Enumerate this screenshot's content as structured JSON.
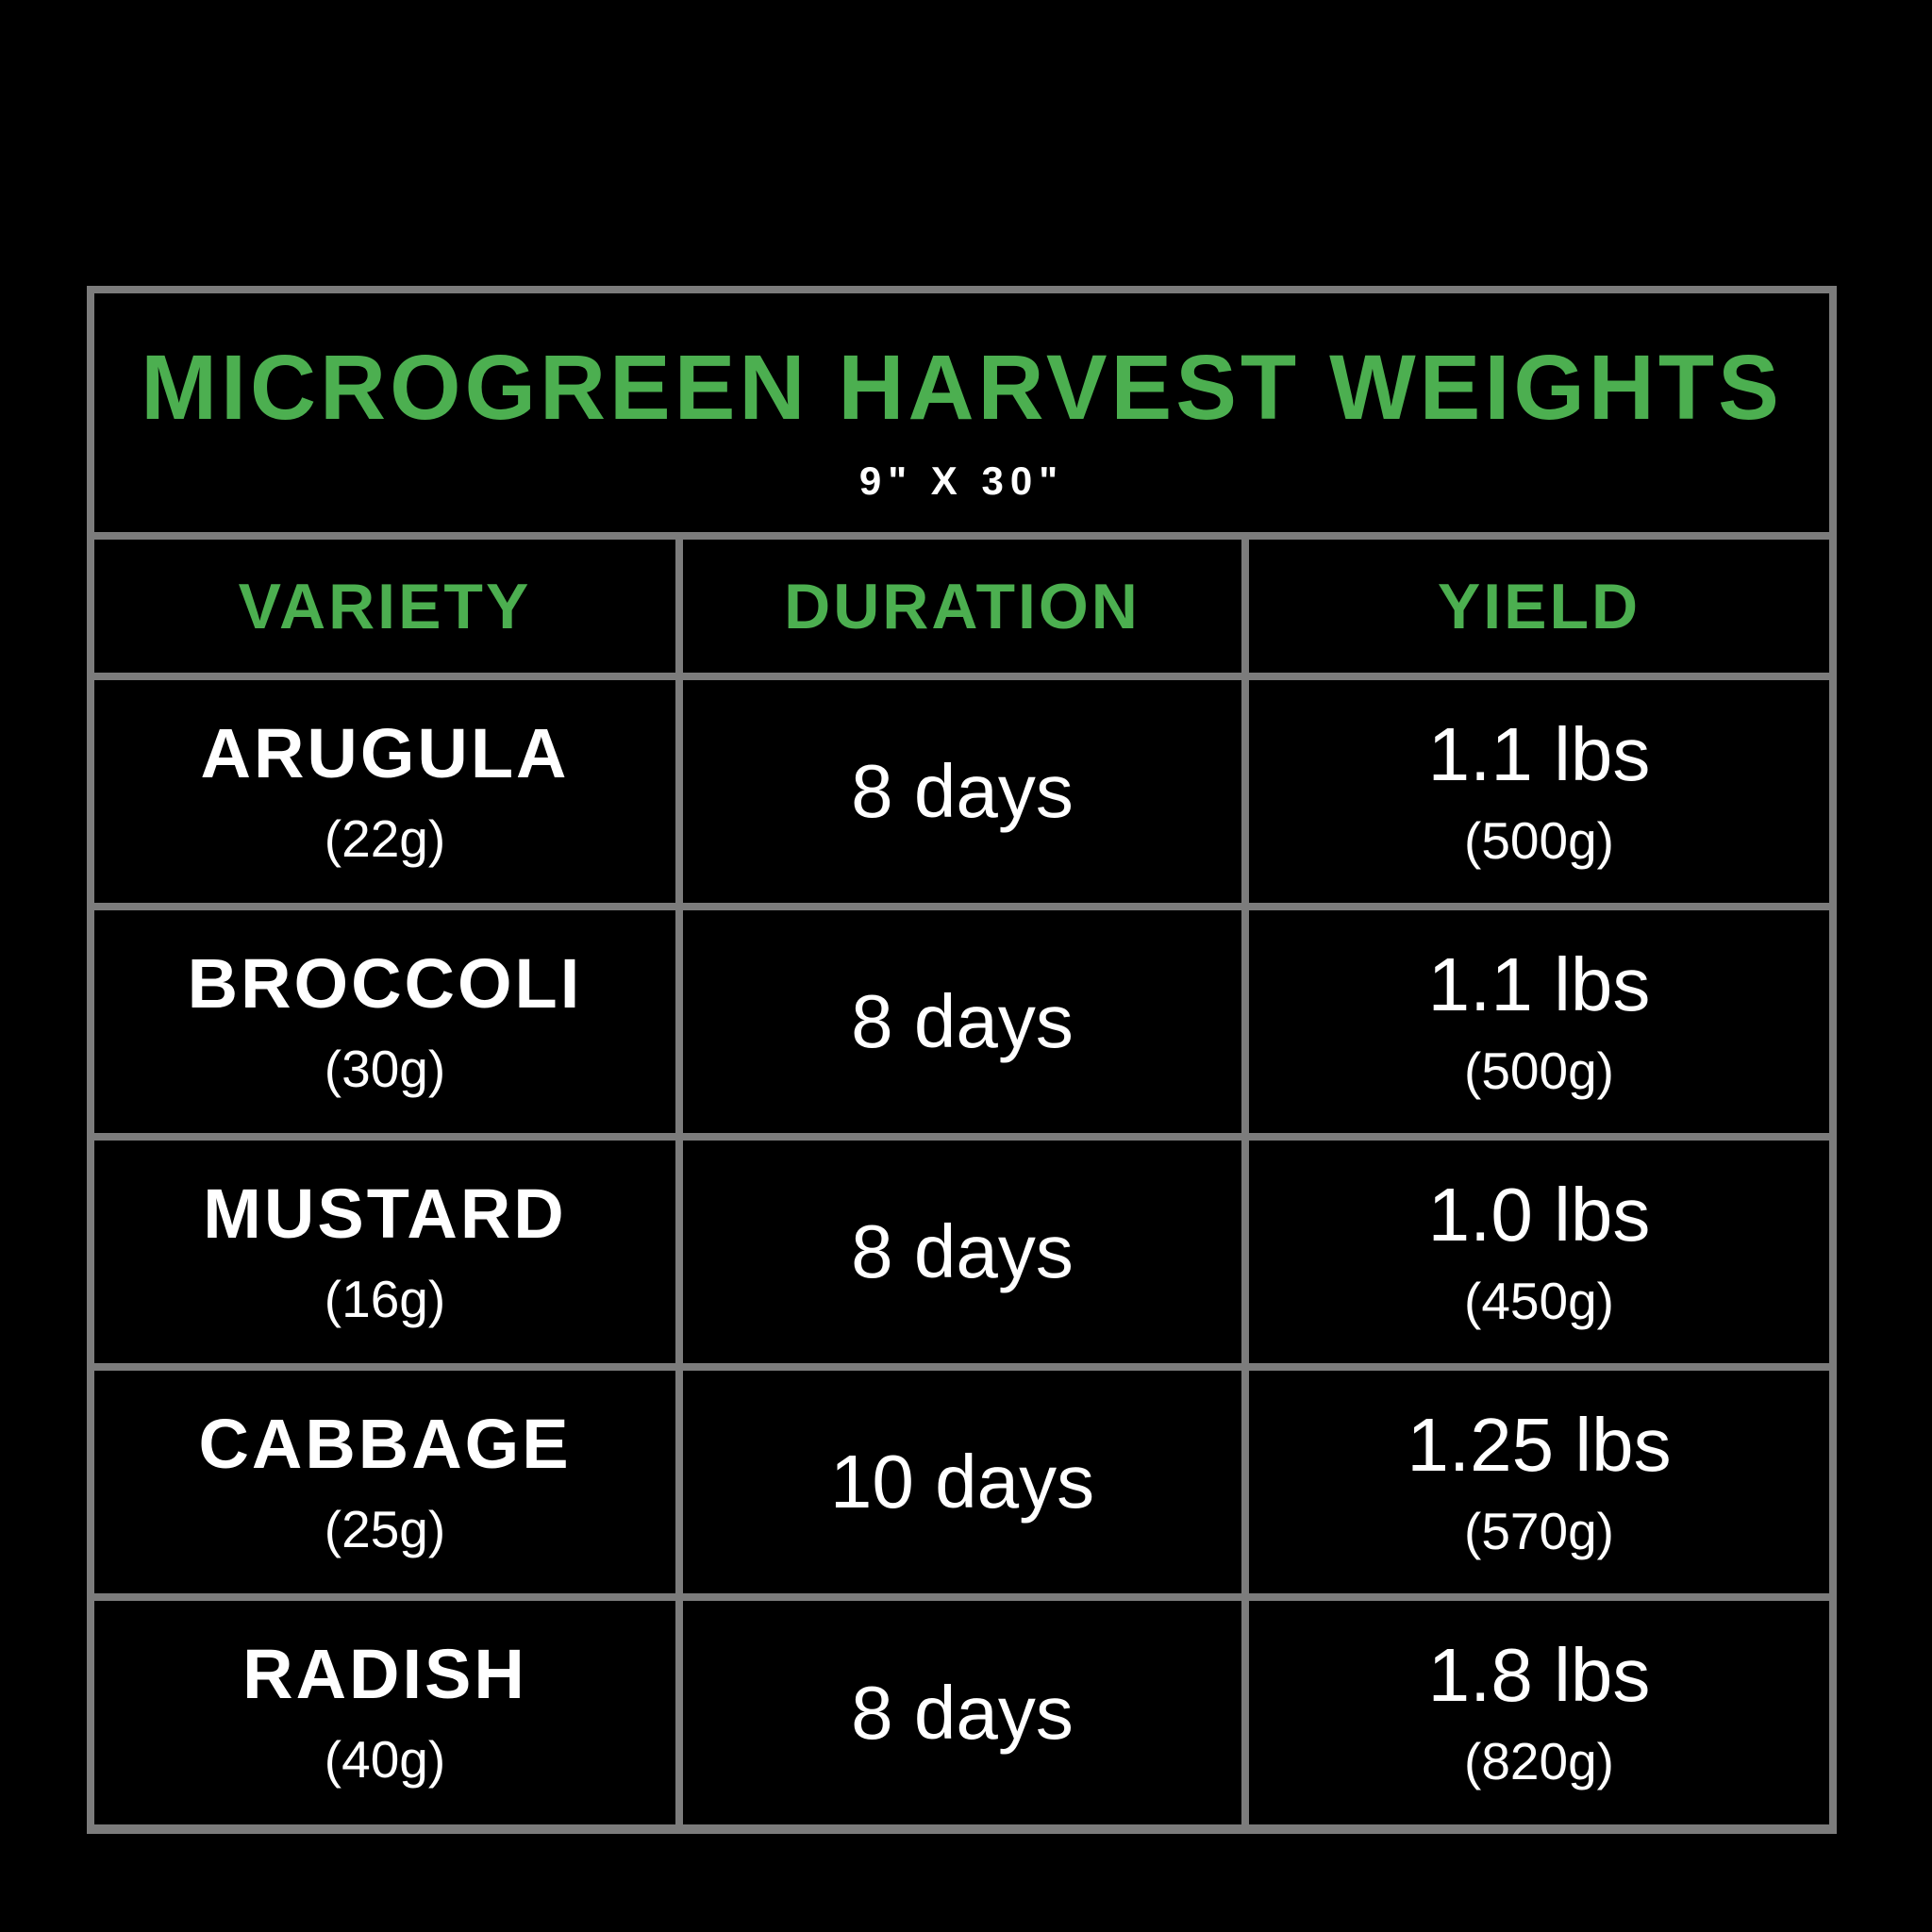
{
  "colors": {
    "background": "#000000",
    "accent_green": "#4CAF50",
    "border_gray": "#7C7C7C",
    "text_white": "#FFFFFF"
  },
  "chart_data": {
    "type": "table",
    "title": "MICROGREEN HARVEST WEIGHTS",
    "subtitle": "9\" X 30\"",
    "columns": [
      "VARIETY",
      "DURATION",
      "YIELD"
    ],
    "rows": [
      {
        "variety": "ARUGULA",
        "seed_weight": "(22g)",
        "duration": "8 days",
        "yield_lbs": "1.1 lbs",
        "yield_grams": "(500g)"
      },
      {
        "variety": "BROCCOLI",
        "seed_weight": "(30g)",
        "duration": "8 days",
        "yield_lbs": "1.1 lbs",
        "yield_grams": "(500g)"
      },
      {
        "variety": "MUSTARD",
        "seed_weight": "(16g)",
        "duration": "8 days",
        "yield_lbs": "1.0 lbs",
        "yield_grams": "(450g)"
      },
      {
        "variety": "CABBAGE",
        "seed_weight": "(25g)",
        "duration": "10 days",
        "yield_lbs": "1.25 lbs",
        "yield_grams": "(570g)"
      },
      {
        "variety": "RADISH",
        "seed_weight": "(40g)",
        "duration": "8 days",
        "yield_lbs": "1.8 lbs",
        "yield_grams": "(820g)"
      }
    ]
  }
}
